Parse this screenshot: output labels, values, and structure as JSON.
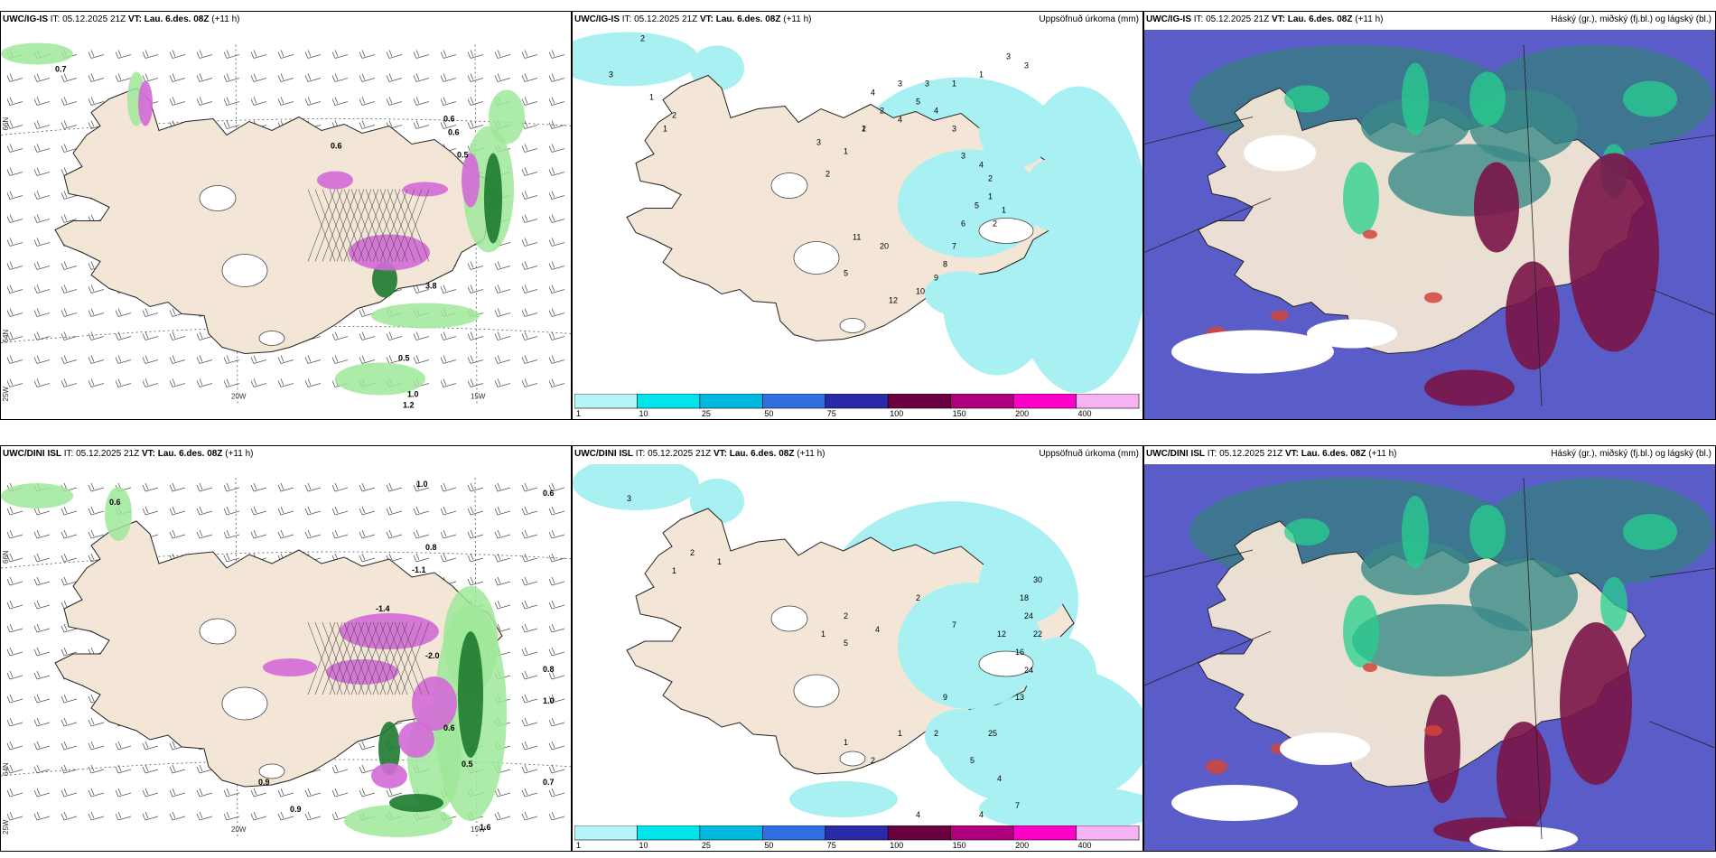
{
  "panels": [
    {
      "model": "UWC/IG-IS",
      "it": "IT: 05.12.2025 21Z",
      "vt_label": "VT:",
      "vt": "Lau. 6.des. 08Z",
      "lead": "(+11 h)",
      "right": ""
    },
    {
      "model": "UWC/IG-IS",
      "it": "IT: 05.12.2025 21Z",
      "vt_label": "VT:",
      "vt": "Lau. 6.des. 08Z",
      "lead": "(+11 h)",
      "right": "Uppsöfnuð úrkoma (mm)"
    },
    {
      "model": "UWC/IG-IS",
      "it": "IT: 05.12.2025 21Z",
      "vt_label": "VT:",
      "vt": "Lau. 6.des. 08Z",
      "lead": "(+11 h)",
      "right": "Háský (gr.), miðský (fj.bl.) og lágský (bl.)"
    },
    {
      "model": "UWC/DINI ISL",
      "it": "IT: 05.12.2025 21Z",
      "vt_label": "VT:",
      "vt": "Lau. 6.des. 08Z",
      "lead": "(+11 h)",
      "right": ""
    },
    {
      "model": "UWC/DINI ISL",
      "it": "IT: 05.12.2025 21Z",
      "vt_label": "VT:",
      "vt": "Lau. 6.des. 08Z",
      "lead": "(+11 h)",
      "right": "Uppsöfnuð úrkoma (mm)"
    },
    {
      "model": "UWC/DINI ISL",
      "it": "IT: 05.12.2025 21Z",
      "vt_label": "VT:",
      "vt": "Lau. 6.des. 08Z",
      "lead": "(+11 h)",
      "right": "Háský (gr.), miðský (fj.bl.) og lágský (bl.)"
    }
  ],
  "axis_labels": {
    "lon1": "20W",
    "lon2": "15W",
    "lat_top": "66N",
    "lat_bot": "64N",
    "lat_left_low": "25W"
  },
  "colorbar": {
    "ticks": [
      "1",
      "10",
      "25",
      "50",
      "75",
      "100",
      "150",
      "200",
      "400"
    ],
    "colors": [
      "#b6f5f7",
      "#00e5ec",
      "#00b8e0",
      "#2f6fe0",
      "#2a2aa8",
      "#6a0040",
      "#b0007e",
      "#ff00c8",
      "#f7b2f3"
    ]
  },
  "colors": {
    "land": "#f3e6d6",
    "precip_light": "#a8f0f2",
    "green_light": "#9fe79a",
    "green_dark": "#1d7a2e",
    "magenta": "#d36ad7"
  },
  "precip_numbers_top": [
    "3",
    "2",
    "1",
    "2",
    "1",
    "3",
    "2",
    "1",
    "1",
    "2",
    "4",
    "5",
    "4",
    "3",
    "3",
    "4",
    "2",
    "1",
    "1",
    "2",
    "5",
    "6",
    "7",
    "8",
    "9",
    "10",
    "12",
    "20",
    "11",
    "5",
    "2",
    "4",
    "3",
    "3",
    "1",
    "1",
    "3",
    "3"
  ],
  "precip_numbers_bot": [
    "3",
    "1",
    "2",
    "1",
    "1",
    "2",
    "5",
    "4",
    "2",
    "7",
    "12",
    "18",
    "30",
    "24",
    "22",
    "16",
    "24",
    "13",
    "25",
    "9",
    "2",
    "5",
    "4",
    "7",
    "4",
    "4",
    "1",
    "2",
    "1"
  ],
  "temp_numbers_top": [
    "0.7",
    "0.6",
    "0.6",
    "0.6",
    "0.5",
    "1.0",
    "1.2",
    "0.5",
    "3.8"
  ],
  "temp_numbers_bot": [
    "0.6",
    "1.0",
    "0.6",
    "0.8",
    "-1.1",
    "-1.4",
    "-2.0",
    "0.5",
    "0.6",
    "0.9",
    "0.8",
    "1.0",
    "0.7",
    "0.9",
    "1.6"
  ]
}
